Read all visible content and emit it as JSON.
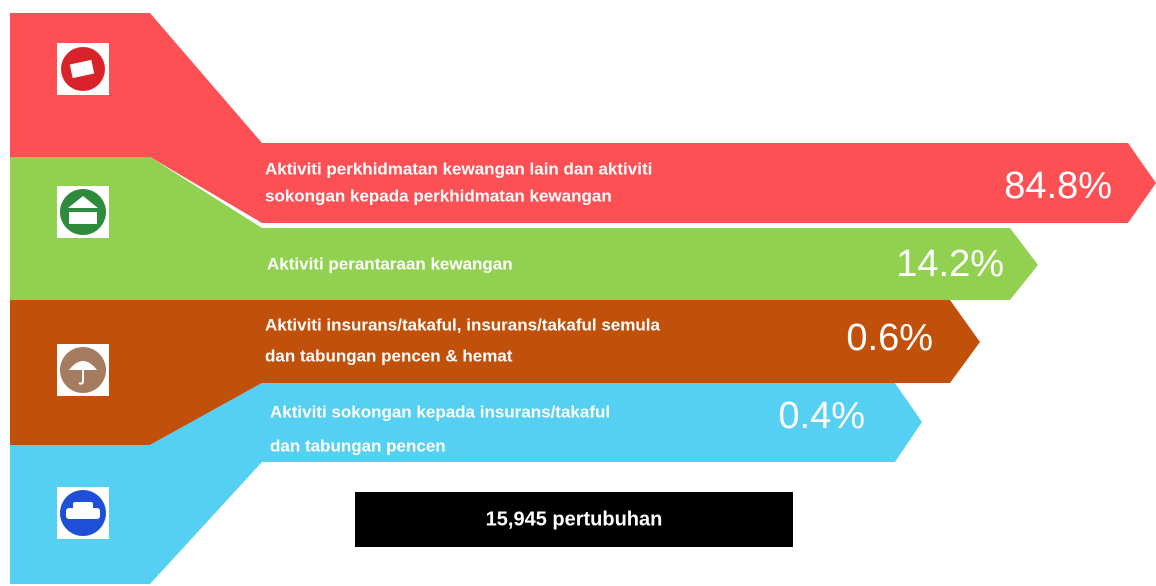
{
  "items": [
    {
      "lines": [
        "Aktiviti perkhidmatan kewangan lain dan aktiviti",
        "sokongan kepada perkhidmatan kewangan"
      ],
      "percent": "84.8%"
    },
    {
      "lines": [
        "Aktiviti perantaraan kewangan"
      ],
      "percent": "14.2%"
    },
    {
      "lines": [
        "Aktiviti insurans/takaful, insurans/takaful semula",
        "dan tabungan pencen & hemat"
      ],
      "percent": "0.6%"
    },
    {
      "lines": [
        "Aktiviti sokongan kepada insurans/takaful",
        "dan tabungan pencen"
      ],
      "percent": "0.4%"
    }
  ],
  "footer": "15,945 pertubuhan"
}
